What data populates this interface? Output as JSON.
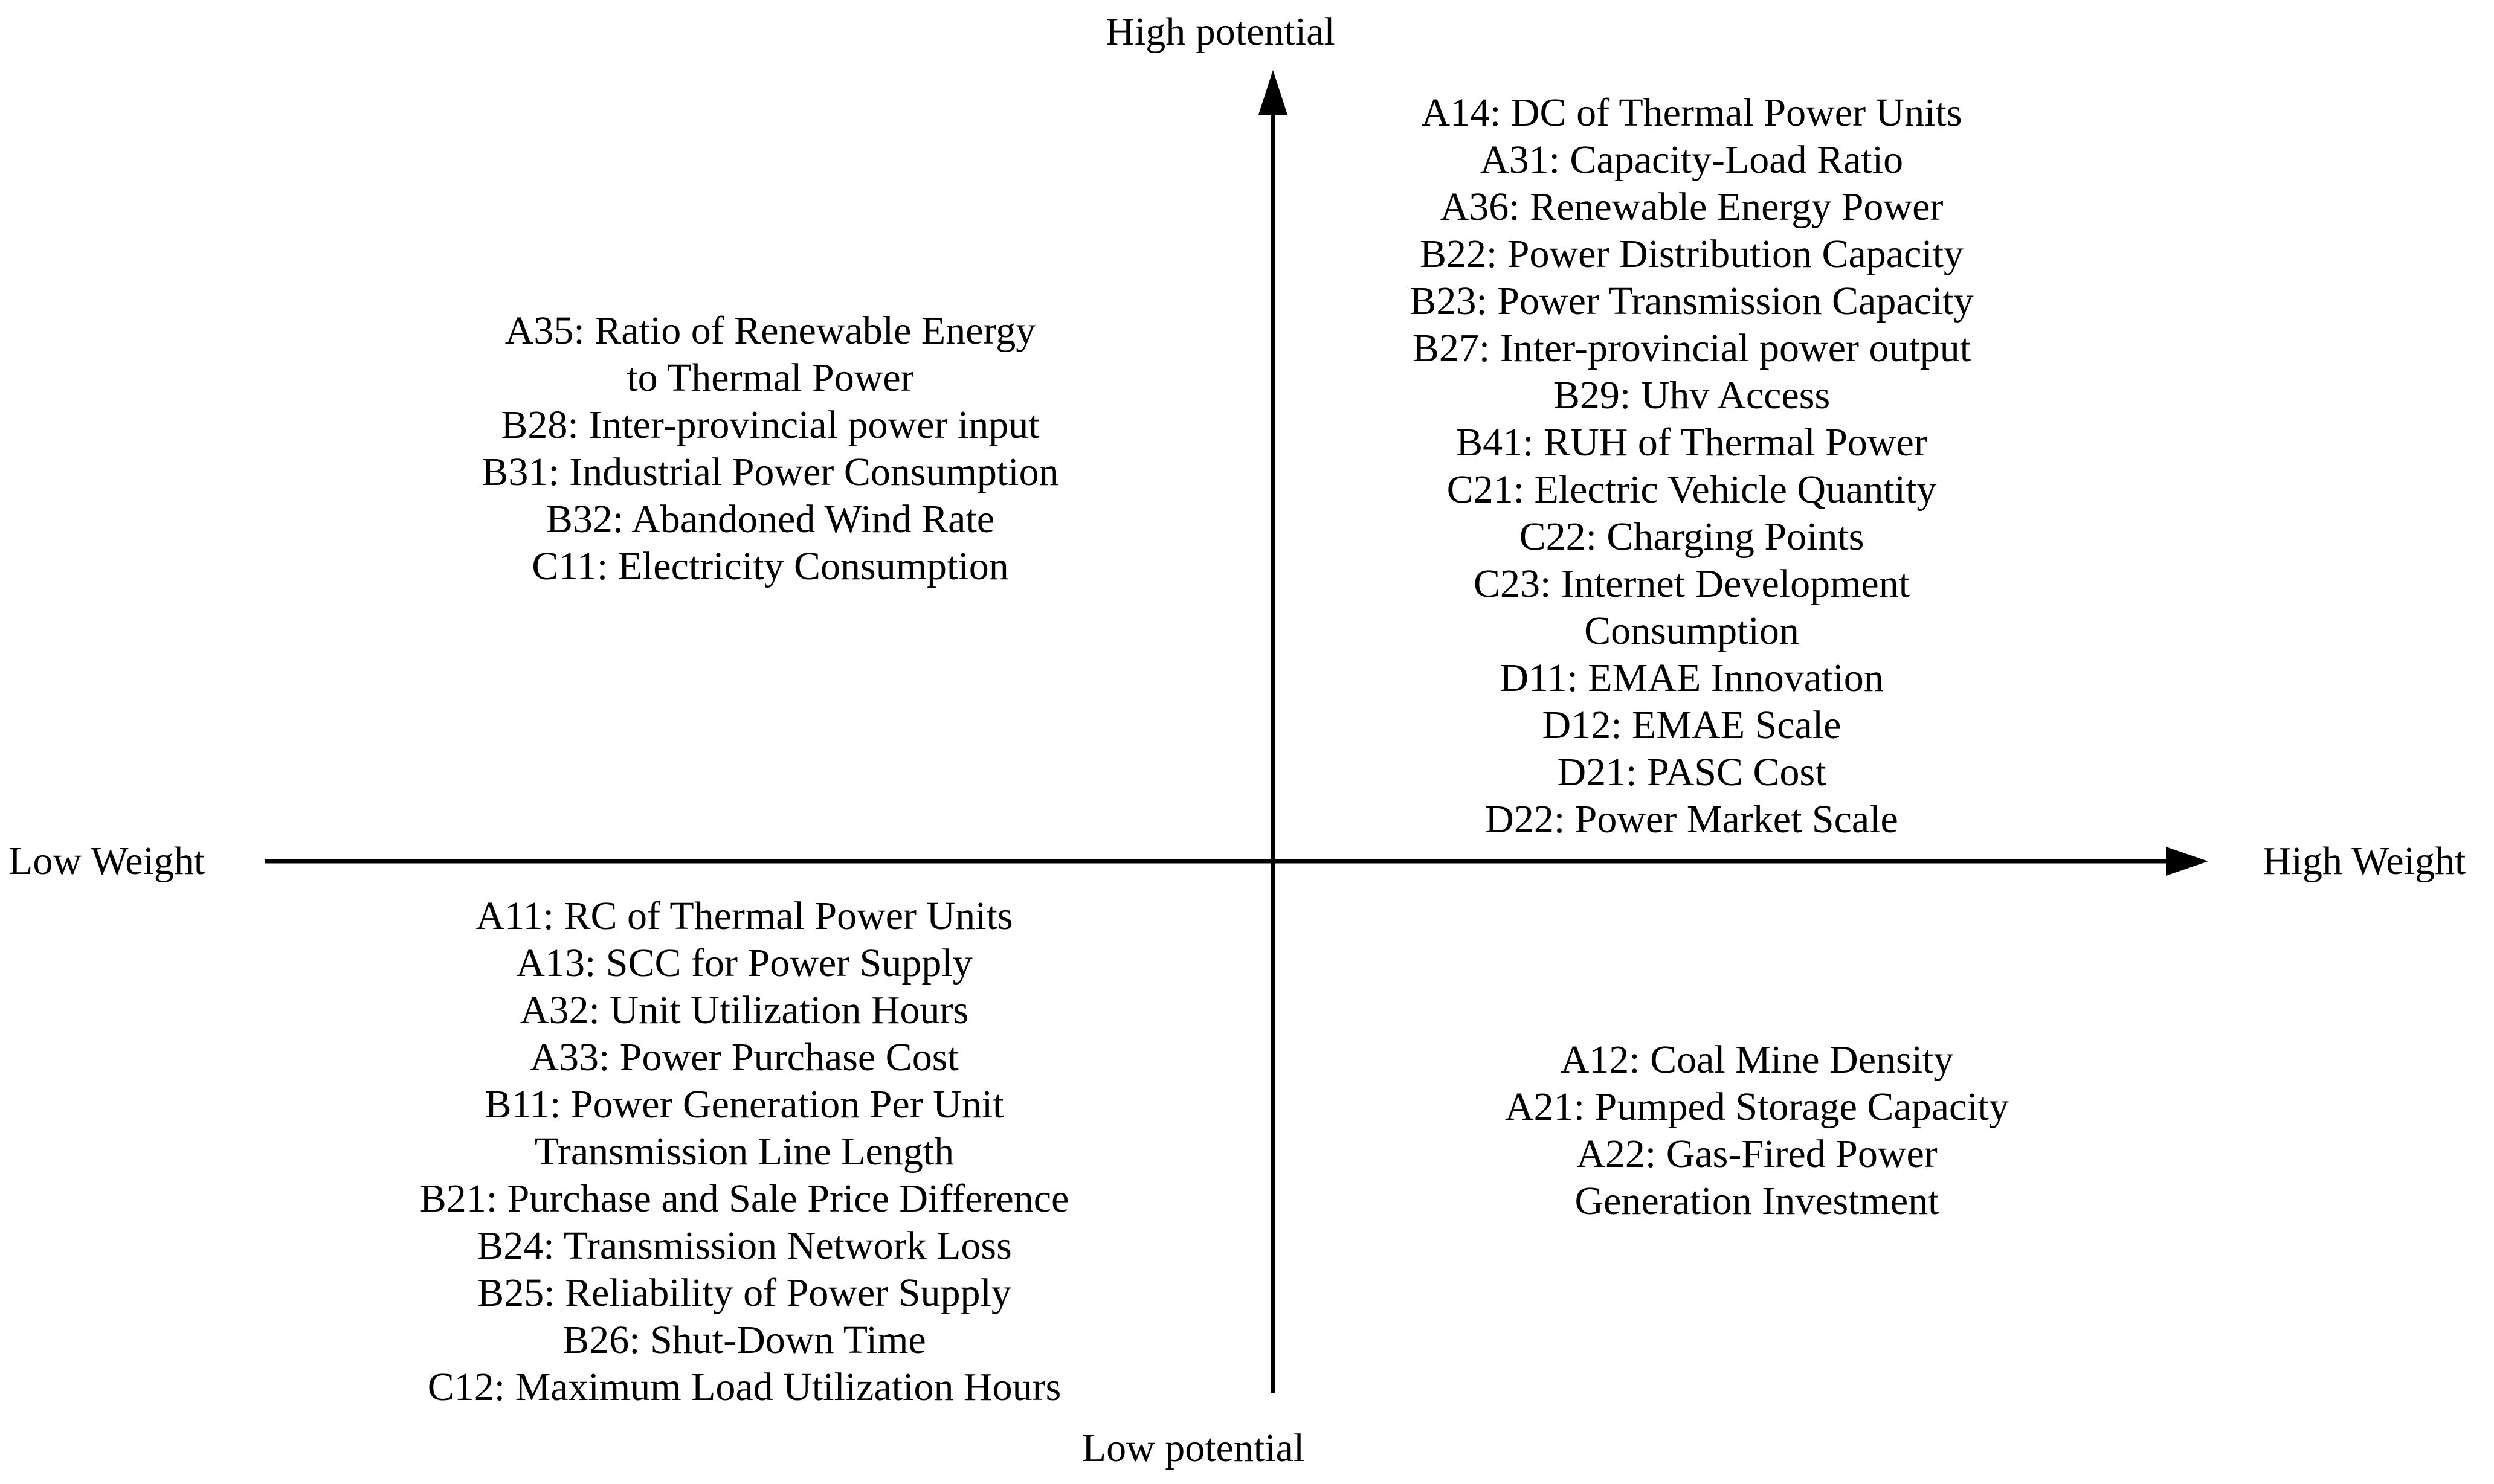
{
  "colors": {
    "ink": "#000000",
    "background": "#ffffff"
  },
  "axes": {
    "top_label": "High potential",
    "bottom_label": "Low potential",
    "left_label": "Low Weight",
    "right_label": "High Weight"
  },
  "quadrants": {
    "top_left": {
      "region": "low-weight-high-potential",
      "items": [
        "A35: Ratio of Renewable Energy\nto Thermal Power",
        "B28: Inter-provincial power input",
        "B31: Industrial Power Consumption",
        "B32: Abandoned Wind Rate",
        "C11: Electricity Consumption"
      ]
    },
    "top_right": {
      "region": "high-weight-high-potential",
      "items": [
        "A14: DC of Thermal Power Units",
        "A31: Capacity-Load Ratio",
        "A36: Renewable Energy Power",
        "B22: Power Distribution Capacity",
        "B23: Power Transmission Capacity",
        "B27: Inter-provincial power output",
        "B29: Uhv Access",
        "B41: RUH of Thermal Power",
        "C21: Electric Vehicle Quantity",
        "C22: Charging Points",
        "C23: Internet Development\nConsumption",
        "D11: EMAE Innovation",
        "D12: EMAE Scale",
        "D21: PASC Cost",
        "D22: Power Market Scale"
      ]
    },
    "bottom_left": {
      "region": "low-weight-low-potential",
      "items": [
        "A11: RC of Thermal Power Units",
        "A13: SCC for Power Supply",
        "A32: Unit Utilization Hours",
        "A33: Power Purchase Cost",
        "B11: Power Generation Per Unit\nTransmission Line Length",
        "B21: Purchase and Sale Price Difference",
        "B24: Transmission Network Loss",
        "B25: Reliability of Power Supply",
        "B26: Shut-Down Time",
        "C12: Maximum Load Utilization Hours"
      ]
    },
    "bottom_right": {
      "region": "high-weight-low-potential",
      "items": [
        "A12: Coal Mine Density",
        "A21: Pumped Storage Capacity",
        "A22: Gas-Fired Power\nGeneration Investment"
      ]
    }
  }
}
